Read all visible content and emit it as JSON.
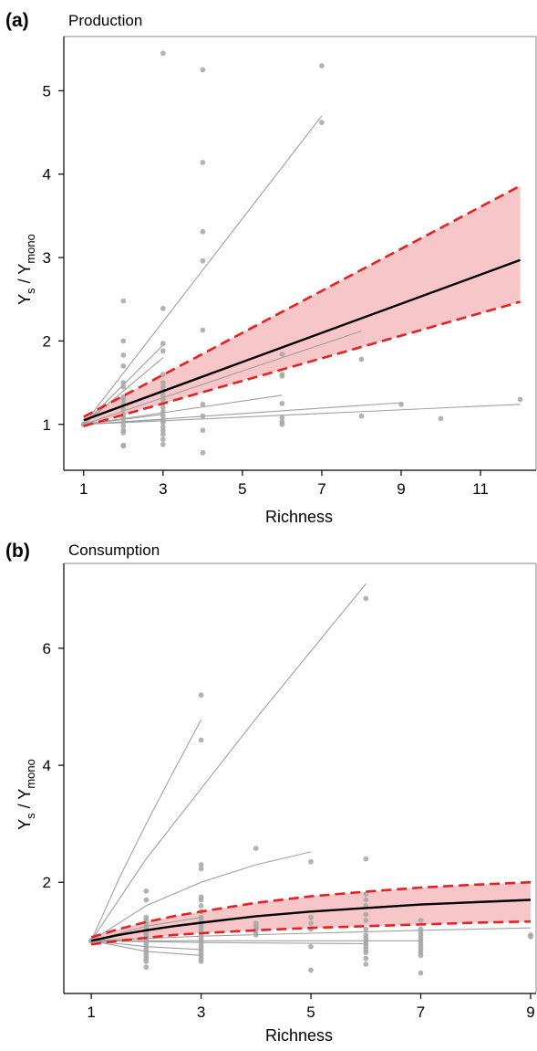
{
  "panels": [
    {
      "letter": "(a)",
      "title": "Production",
      "xlabel": "Richness",
      "ylabel_main": "Y",
      "ylabel_sub1": "s",
      "ylabel_sep": " / Y",
      "ylabel_sub2": "mono"
    },
    {
      "letter": "(b)",
      "title": "Consumption",
      "xlabel": "Richness",
      "ylabel_main": "Y",
      "ylabel_sub1": "s",
      "ylabel_sep": " / Y",
      "ylabel_sub2": "mono"
    }
  ],
  "chart_data": [
    {
      "type": "scatter",
      "title": "Production",
      "xlabel": "Richness",
      "ylabel": "Ys / Ymono",
      "xlim": [
        0.5,
        12.4
      ],
      "ylim": [
        0.45,
        5.65
      ],
      "xticks": [
        1,
        3,
        5,
        7,
        9,
        11
      ],
      "yticks": [
        1,
        2,
        3,
        4,
        5
      ],
      "colors": {
        "points": "#a6a6a6",
        "study_lines": "#a0a0a0",
        "ci_fill": "#f7c6c9",
        "ci_border": "#e32222",
        "mean": "#000000"
      },
      "points": [
        [
          1,
          1.0
        ],
        [
          1,
          1.0
        ],
        [
          1,
          1.0
        ],
        [
          2,
          2.48
        ],
        [
          2,
          2.0
        ],
        [
          2,
          1.83
        ],
        [
          2,
          1.7
        ],
        [
          2,
          1.5
        ],
        [
          2,
          1.45
        ],
        [
          2,
          1.33
        ],
        [
          2,
          1.3
        ],
        [
          2,
          1.25
        ],
        [
          2,
          1.18
        ],
        [
          2,
          1.12
        ],
        [
          2,
          1.08
        ],
        [
          2,
          1.03
        ],
        [
          2,
          0.98
        ],
        [
          2,
          0.93
        ],
        [
          2,
          0.9
        ],
        [
          2,
          0.75
        ],
        [
          2,
          0.74
        ],
        [
          3,
          5.45
        ],
        [
          3,
          2.39
        ],
        [
          3,
          1.97
        ],
        [
          3,
          1.88
        ],
        [
          3,
          1.6
        ],
        [
          3,
          1.5
        ],
        [
          3,
          1.45
        ],
        [
          3,
          1.4
        ],
        [
          3,
          1.35
        ],
        [
          3,
          1.3
        ],
        [
          3,
          1.25
        ],
        [
          3,
          1.2
        ],
        [
          3,
          1.15
        ],
        [
          3,
          1.1
        ],
        [
          3,
          1.05
        ],
        [
          3,
          1.02
        ],
        [
          3,
          0.97
        ],
        [
          3,
          0.93
        ],
        [
          3,
          0.88
        ],
        [
          3,
          0.82
        ],
        [
          3,
          0.76
        ],
        [
          4,
          5.25
        ],
        [
          4,
          4.14
        ],
        [
          4,
          3.31
        ],
        [
          4,
          2.96
        ],
        [
          4,
          2.13
        ],
        [
          4,
          1.24
        ],
        [
          4,
          1.1
        ],
        [
          4,
          0.93
        ],
        [
          4,
          0.66
        ],
        [
          6,
          1.84
        ],
        [
          6,
          1.6
        ],
        [
          6,
          1.58
        ],
        [
          6,
          1.25
        ],
        [
          6,
          1.08
        ],
        [
          6,
          1.03
        ],
        [
          6,
          1.0
        ],
        [
          7,
          5.3
        ],
        [
          7,
          4.62
        ],
        [
          8,
          1.78
        ],
        [
          8,
          1.1
        ],
        [
          9,
          1.24
        ],
        [
          10,
          1.07
        ],
        [
          12,
          1.3
        ]
      ],
      "study_lines": [
        {
          "x": [
            1,
            7
          ],
          "y": [
            1.0,
            4.7
          ]
        },
        {
          "x": [
            1,
            3
          ],
          "y": [
            1.0,
            1.95
          ]
        },
        {
          "x": [
            1,
            3
          ],
          "y": [
            1.0,
            1.8
          ]
        },
        {
          "x": [
            1,
            8
          ],
          "y": [
            1.0,
            2.12
          ]
        },
        {
          "x": [
            1,
            6
          ],
          "y": [
            1.0,
            1.35
          ]
        },
        {
          "x": [
            1,
            9
          ],
          "y": [
            1.0,
            1.26
          ]
        },
        {
          "x": [
            1,
            12
          ],
          "y": [
            1.0,
            1.24
          ]
        },
        {
          "x": [
            1,
            3
          ],
          "y": [
            1.0,
            1.12
          ]
        },
        {
          "x": [
            1,
            3
          ],
          "y": [
            1.0,
            1.06
          ]
        }
      ],
      "mean_line": {
        "x": [
          1,
          12
        ],
        "y": [
          1.05,
          2.97
        ]
      },
      "ci_lower": {
        "x": [
          1,
          12
        ],
        "y": [
          0.98,
          2.47
        ]
      },
      "ci_upper": {
        "x": [
          1,
          12
        ],
        "y": [
          1.09,
          3.86
        ]
      }
    },
    {
      "type": "scatter",
      "title": "Consumption",
      "xlabel": "Richness",
      "ylabel": "Ys / Ymono",
      "xlim": [
        0.5,
        9.1
      ],
      "ylim": [
        0.1,
        7.45
      ],
      "xticks": [
        1,
        3,
        5,
        7,
        9
      ],
      "yticks": [
        2,
        4,
        6
      ],
      "colors": {
        "points": "#a6a6a6",
        "study_lines": "#a0a0a0",
        "ci_fill": "#f7c6c9",
        "ci_border": "#e32222",
        "mean": "#000000"
      },
      "points": [
        [
          1,
          1.0
        ],
        [
          1,
          1.0
        ],
        [
          1,
          1.0
        ],
        [
          2,
          1.85
        ],
        [
          2,
          1.7
        ],
        [
          2,
          1.4
        ],
        [
          2,
          1.35
        ],
        [
          2,
          1.3
        ],
        [
          2,
          1.25
        ],
        [
          2,
          1.2
        ],
        [
          2,
          1.15
        ],
        [
          2,
          1.1
        ],
        [
          2,
          1.05
        ],
        [
          2,
          1.0
        ],
        [
          2,
          0.95
        ],
        [
          2,
          0.9
        ],
        [
          2,
          0.85
        ],
        [
          2,
          0.8
        ],
        [
          2,
          0.75
        ],
        [
          2,
          0.7
        ],
        [
          2,
          0.65
        ],
        [
          2,
          0.55
        ],
        [
          3,
          5.2
        ],
        [
          3,
          4.43
        ],
        [
          3,
          2.3
        ],
        [
          3,
          2.23
        ],
        [
          3,
          1.75
        ],
        [
          3,
          1.7
        ],
        [
          3,
          1.6
        ],
        [
          3,
          1.5
        ],
        [
          3,
          1.4
        ],
        [
          3,
          1.35
        ],
        [
          3,
          1.3
        ],
        [
          3,
          1.25
        ],
        [
          3,
          1.2
        ],
        [
          3,
          1.15
        ],
        [
          3,
          1.1
        ],
        [
          3,
          1.05
        ],
        [
          3,
          1.0
        ],
        [
          3,
          0.95
        ],
        [
          3,
          0.9
        ],
        [
          3,
          0.85
        ],
        [
          3,
          0.8
        ],
        [
          3,
          0.75
        ],
        [
          3,
          0.7
        ],
        [
          3,
          0.65
        ],
        [
          4,
          2.58
        ],
        [
          4,
          1.3
        ],
        [
          4,
          1.25
        ],
        [
          4,
          1.2
        ],
        [
          4,
          1.15
        ],
        [
          4,
          1.1
        ],
        [
          5,
          2.35
        ],
        [
          5,
          1.4
        ],
        [
          5,
          1.3
        ],
        [
          5,
          1.2
        ],
        [
          5,
          0.9
        ],
        [
          5,
          0.5
        ],
        [
          6,
          6.85
        ],
        [
          6,
          2.4
        ],
        [
          6,
          1.8
        ],
        [
          6,
          1.7
        ],
        [
          6,
          1.6
        ],
        [
          6,
          1.45
        ],
        [
          6,
          1.35
        ],
        [
          6,
          1.2
        ],
        [
          6,
          1.1
        ],
        [
          6,
          1.05
        ],
        [
          6,
          1.0
        ],
        [
          6,
          0.95
        ],
        [
          6,
          0.9
        ],
        [
          6,
          0.85
        ],
        [
          6,
          0.8
        ],
        [
          6,
          0.7
        ],
        [
          6,
          0.6
        ],
        [
          7,
          1.35
        ],
        [
          7,
          1.2
        ],
        [
          7,
          1.15
        ],
        [
          7,
          1.1
        ],
        [
          7,
          1.05
        ],
        [
          7,
          1.0
        ],
        [
          7,
          0.95
        ],
        [
          7,
          0.9
        ],
        [
          7,
          0.85
        ],
        [
          7,
          0.8
        ],
        [
          7,
          0.75
        ],
        [
          7,
          0.45
        ],
        [
          9,
          1.1
        ],
        [
          9,
          1.07
        ]
      ],
      "study_lines": [
        {
          "x": [
            1,
            1.5,
            2,
            2.5,
            3
          ],
          "y": [
            1.0,
            2.05,
            3.0,
            3.9,
            4.78
          ]
        },
        {
          "x": [
            1,
            2,
            3,
            4,
            5,
            6
          ],
          "y": [
            1.0,
            2.4,
            3.6,
            4.8,
            5.95,
            7.1
          ]
        },
        {
          "x": [
            1,
            2,
            3,
            4,
            5
          ],
          "y": [
            1.0,
            1.6,
            2.0,
            2.3,
            2.52
          ]
        },
        {
          "x": [
            1,
            2,
            3
          ],
          "y": [
            1.0,
            1.25,
            1.4
          ]
        },
        {
          "x": [
            1,
            3,
            5,
            7,
            9
          ],
          "y": [
            1.0,
            1.08,
            1.13,
            1.18,
            1.22
          ]
        },
        {
          "x": [
            1,
            3,
            5,
            7
          ],
          "y": [
            1.0,
            1.0,
            1.0,
            1.0
          ]
        },
        {
          "x": [
            1,
            3,
            6
          ],
          "y": [
            1.0,
            0.97,
            0.95
          ]
        },
        {
          "x": [
            1,
            2,
            3
          ],
          "y": [
            1.0,
            0.9,
            0.85
          ]
        },
        {
          "x": [
            1,
            2,
            3
          ],
          "y": [
            1.0,
            0.82,
            0.75
          ]
        }
      ],
      "mean_line": {
        "x": [
          1,
          1.5,
          2,
          2.5,
          3,
          4,
          5,
          6,
          7,
          8,
          9
        ],
        "y": [
          1.0,
          1.1,
          1.18,
          1.25,
          1.31,
          1.42,
          1.5,
          1.56,
          1.62,
          1.66,
          1.7
        ]
      },
      "ci_lower": {
        "x": [
          1,
          1.5,
          2,
          2.5,
          3,
          4,
          5,
          6,
          7,
          8,
          9
        ],
        "y": [
          0.94,
          1.0,
          1.05,
          1.1,
          1.13,
          1.18,
          1.22,
          1.25,
          1.28,
          1.31,
          1.33
        ]
      },
      "ci_upper": {
        "x": [
          1,
          1.5,
          2,
          2.5,
          3,
          4,
          5,
          6,
          7,
          8,
          9
        ],
        "y": [
          1.06,
          1.2,
          1.32,
          1.42,
          1.5,
          1.65,
          1.76,
          1.84,
          1.91,
          1.96,
          2.0
        ]
      }
    }
  ]
}
